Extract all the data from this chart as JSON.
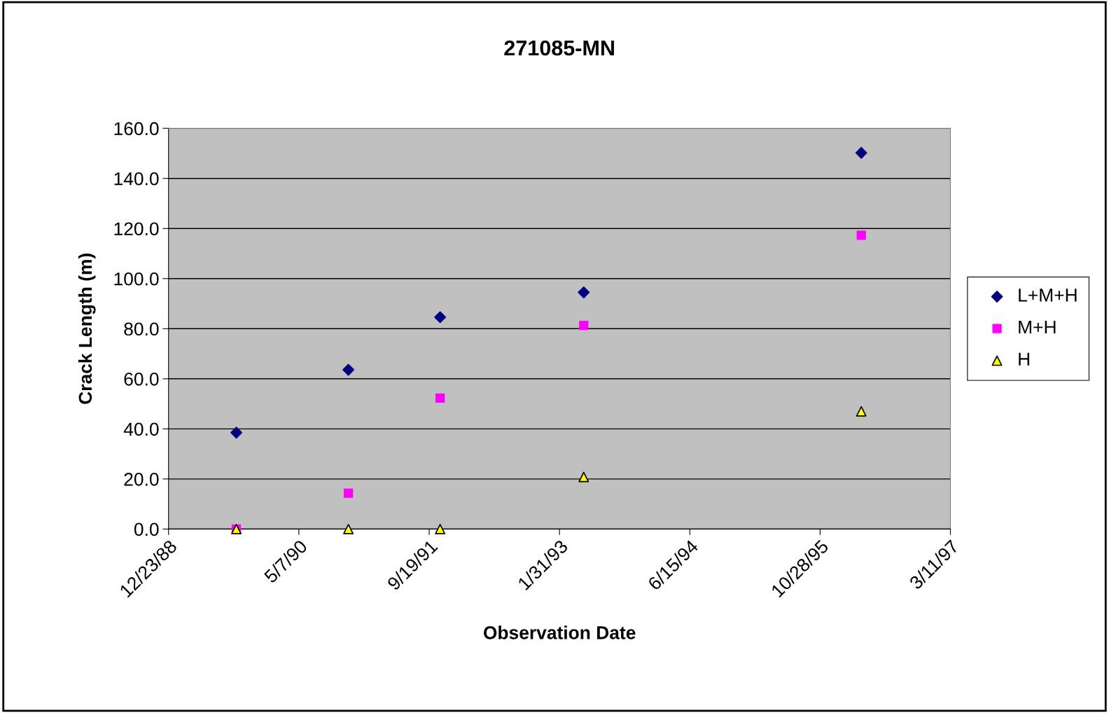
{
  "chart_data": {
    "type": "scatter",
    "title": "271085-MN",
    "xlabel": "Observation Date",
    "ylabel": "Crack Length (m)",
    "x": [
      "1989-09-09",
      "1990-11-13",
      "1991-10-31",
      "1993-05-04",
      "1996-04-03"
    ],
    "series": [
      {
        "name": "L+M+H",
        "color": "#000080",
        "marker": "diamond",
        "values": [
          38.5,
          63.6,
          84.6,
          94.5,
          150.2
        ]
      },
      {
        "name": "M+H",
        "color": "#ff00ff",
        "marker": "square",
        "values": [
          0,
          14.3,
          52.3,
          81.3,
          117.3
        ]
      },
      {
        "name": "H",
        "color": "#ffff00",
        "marker": "triangle",
        "values": [
          0,
          0,
          0,
          20.8,
          47.0
        ]
      }
    ],
    "xlim": [
      "1988-12-23",
      "1997-03-11"
    ],
    "xticks": [
      {
        "value": "1988-12-23",
        "label": "12/23/88"
      },
      {
        "value": "1990-05-07",
        "label": "5/7/90"
      },
      {
        "value": "1991-09-19",
        "label": "9/19/91"
      },
      {
        "value": "1993-01-31",
        "label": "1/31/93"
      },
      {
        "value": "1994-06-15",
        "label": "6/15/94"
      },
      {
        "value": "1995-10-28",
        "label": "10/28/95"
      },
      {
        "value": "1997-03-11",
        "label": "3/11/97"
      }
    ],
    "ylim": [
      0,
      160
    ],
    "yticks": [
      {
        "value": 0,
        "label": "0.0"
      },
      {
        "value": 20,
        "label": "20.0"
      },
      {
        "value": 40,
        "label": "40.0"
      },
      {
        "value": 60,
        "label": "60.0"
      },
      {
        "value": 80,
        "label": "80.0"
      },
      {
        "value": 100,
        "label": "100.0"
      },
      {
        "value": 120,
        "label": "120.0"
      },
      {
        "value": 140,
        "label": "140.0"
      },
      {
        "value": 160,
        "label": "160.0"
      }
    ],
    "grid": "y",
    "legend": "right"
  }
}
